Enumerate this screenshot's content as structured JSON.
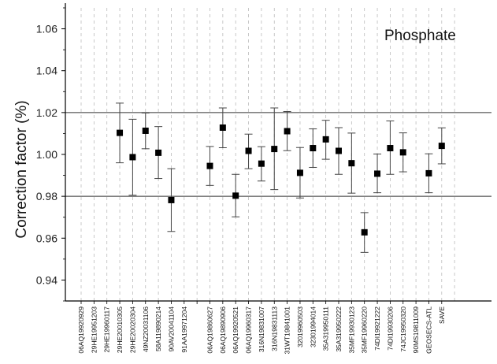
{
  "chart_data": {
    "type": "scatter",
    "title": "",
    "annotation": "Phosphate",
    "xlabel": "",
    "ylabel": "Correction factor (%)",
    "ylim": [
      0.93,
      1.07
    ],
    "yticks": [
      "0.94",
      "0.96",
      "0.98",
      "1.00",
      "1.02",
      "1.04",
      "1.06"
    ],
    "reference_lines": [
      0.98,
      1.02
    ],
    "grid": "vertical dashed gridlines at each category",
    "marker": "filled square with error bars",
    "colors": {
      "marker": "#000000",
      "error_bar": "#444444",
      "grid": "#bbbbbb",
      "reference": "#333333"
    },
    "categories": [
      "06AQ19920929",
      "29HE19951203",
      "29HE19960117",
      "29HE20010305",
      "29HE20020304",
      "49NZ20031106",
      "58A119890214",
      "90AV20041104",
      "91AA19971204",
      "",
      "06AQ19860627",
      "06AQ19890906",
      "06AQ19920521",
      "06AQ19960317",
      "316N19831007",
      "316N19831113",
      "31WT19841001",
      "32019960503",
      "32301994014",
      "35A319950111",
      "35A319950222",
      "35MF19930123",
      "35MF19960220",
      "74DI19921222",
      "74DI19930206",
      "74JC19950320",
      "90MS19811009",
      "GEOSECS-ATL",
      "SAVE"
    ],
    "values": [
      null,
      null,
      null,
      1.0103,
      0.9987,
      1.0113,
      1.0008,
      0.9782,
      null,
      null,
      0.9945,
      1.0128,
      0.9803,
      1.0017,
      0.9956,
      1.0026,
      1.0111,
      0.9912,
      1.003,
      1.0072,
      1.0017,
      0.9958,
      0.9628,
      0.9908,
      1.003,
      1.001,
      null,
      0.991,
      1.0041
    ],
    "error_low": [
      null,
      null,
      null,
      0.996,
      0.9805,
      1.0027,
      0.9885,
      0.9632,
      null,
      null,
      0.9852,
      1.0032,
      0.9702,
      0.9932,
      0.9873,
      0.9832,
      1.0018,
      0.9792,
      0.9938,
      0.9977,
      0.9905,
      0.9815,
      0.9532,
      0.9817,
      0.9905,
      0.9917,
      null,
      0.9817,
      0.9955
    ],
    "error_high": [
      null,
      null,
      null,
      1.0245,
      1.0168,
      1.0198,
      1.0133,
      0.9932,
      null,
      null,
      1.0038,
      1.0222,
      0.9905,
      1.0097,
      1.0037,
      1.0222,
      1.0205,
      1.0033,
      1.0122,
      1.0163,
      1.0128,
      1.0102,
      0.9722,
      1.0002,
      1.016,
      1.0103,
      null,
      1.0003,
      1.0127
    ]
  }
}
